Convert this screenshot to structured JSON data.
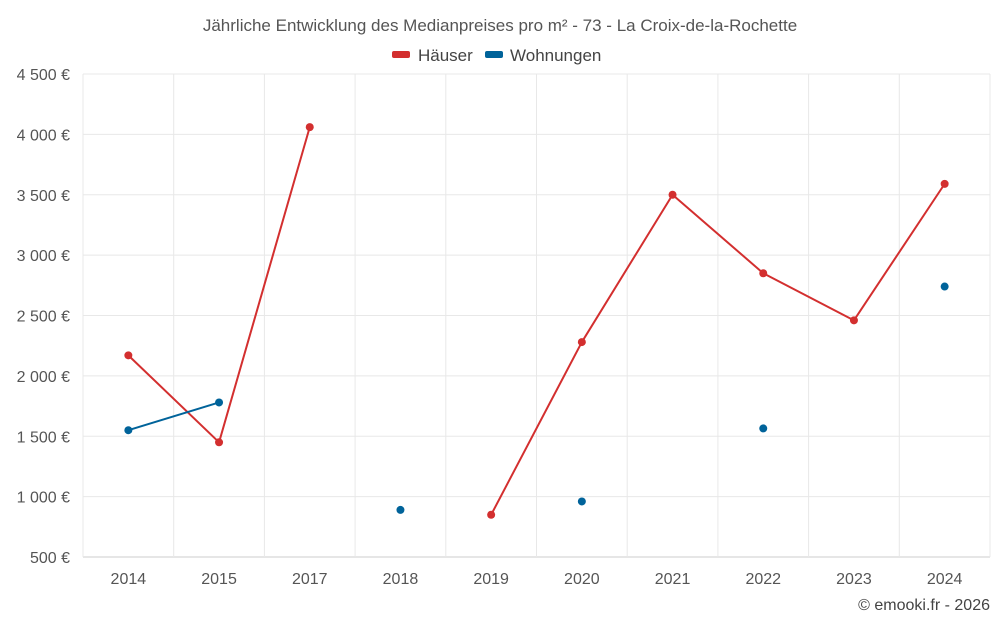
{
  "chart_data": {
    "type": "line",
    "title": "Jährliche Entwicklung des Medianpreises pro m² - 73 - La Croix-de-la-Rochette",
    "categories": [
      "2014",
      "2015",
      "2017",
      "2018",
      "2019",
      "2020",
      "2021",
      "2022",
      "2023",
      "2024"
    ],
    "y_ticks": [
      "500 €",
      "1 000 €",
      "1 500 €",
      "2 000 €",
      "2 500 €",
      "3 000 €",
      "3 500 €",
      "4 000 €",
      "4 500 €"
    ],
    "ylim": [
      500,
      4500
    ],
    "grid": true,
    "legend_position": "top-center",
    "series": [
      {
        "name": "Häuser",
        "color": "#d32f2f",
        "values": [
          2170,
          1450,
          4060,
          null,
          850,
          2280,
          3500,
          2850,
          2460,
          3590
        ]
      },
      {
        "name": "Wohnungen",
        "color": "#00639a",
        "values": [
          1550,
          1780,
          null,
          890,
          null,
          960,
          null,
          1565,
          null,
          2740
        ]
      }
    ]
  },
  "credit": "© emooki.fr - 2026"
}
